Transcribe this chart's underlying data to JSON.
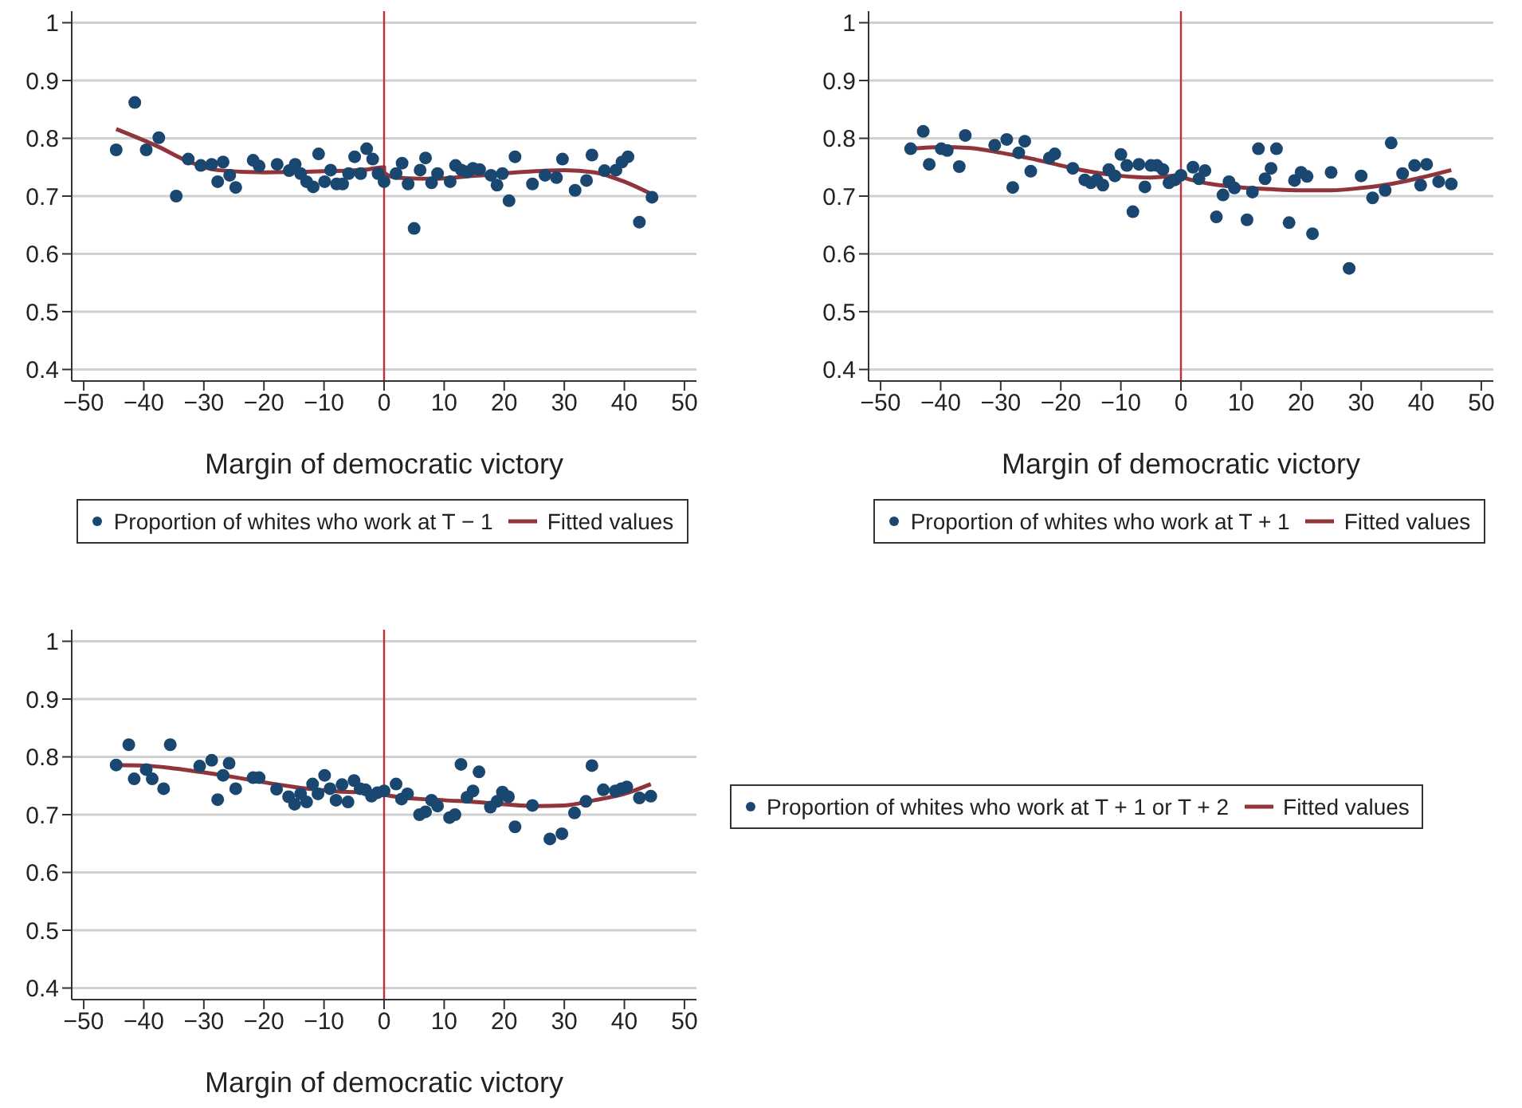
{
  "chart_data": [
    {
      "type": "scatter",
      "xlabel": "Margin of democratic victory",
      "xlim": [
        -52,
        52
      ],
      "ylim": [
        0.38,
        1.02
      ],
      "xticks": [
        -50,
        -40,
        -30,
        -20,
        -10,
        0,
        10,
        20,
        30,
        40,
        50
      ],
      "yticks": [
        0.4,
        0.5,
        0.6,
        0.7,
        0.8,
        0.9,
        1
      ],
      "grid": "y",
      "legend": "bottom",
      "ref_lines": [
        {
          "axis": "x",
          "value": 0,
          "color": "#c0303c"
        }
      ],
      "series": [
        {
          "name": "Proportion of whites who work at T − 1",
          "marker": "circle",
          "color": "#1a476f",
          "x": [
            -44.6,
            -41.5,
            -39.6,
            -37.5,
            -34.6,
            -32.6,
            -30.5,
            -28.7,
            -27.7,
            -26.8,
            -25.7,
            -24.7,
            -21.8,
            -20.8,
            -17.8,
            -15.8,
            -14.8,
            -13.9,
            -12.9,
            -11.8,
            -10.9,
            -9.9,
            -8.9,
            -7.9,
            -6.9,
            -5.9,
            -4.9,
            -3.9,
            -2.9,
            -1.9,
            -1.0,
            0,
            2.0,
            3.0,
            4.0,
            5.0,
            6.0,
            6.9,
            7.9,
            8.9,
            11.0,
            11.9,
            12.9,
            13.9,
            14.8,
            15.9,
            17.8,
            18.8,
            19.7,
            20.8,
            21.8,
            24.7,
            26.8,
            28.7,
            29.7,
            31.8,
            33.7,
            34.6,
            36.7,
            38.6,
            39.6,
            40.6,
            42.5,
            44.6
          ],
          "values": [
            0.78,
            0.862,
            0.78,
            0.801,
            0.7,
            0.764,
            0.753,
            0.755,
            0.725,
            0.759,
            0.736,
            0.715,
            0.762,
            0.752,
            0.755,
            0.744,
            0.755,
            0.739,
            0.725,
            0.716,
            0.773,
            0.725,
            0.745,
            0.721,
            0.721,
            0.739,
            0.768,
            0.739,
            0.782,
            0.764,
            0.739,
            0.725,
            0.739,
            0.757,
            0.721,
            0.644,
            0.745,
            0.766,
            0.723,
            0.739,
            0.725,
            0.753,
            0.745,
            0.742,
            0.748,
            0.746,
            0.736,
            0.719,
            0.739,
            0.692,
            0.768,
            0.721,
            0.736,
            0.732,
            0.764,
            0.71,
            0.727,
            0.771,
            0.744,
            0.745,
            0.759,
            0.768,
            0.655,
            0.698
          ]
        },
        {
          "name": "Fitted values",
          "type": "line",
          "marker": "none",
          "line_style": "solid",
          "color": "#90353b",
          "x": [
            -44.6,
            -37.5,
            -32.6,
            -27.7,
            -20,
            -10,
            -3,
            0,
            0,
            2,
            8,
            15,
            22,
            30,
            35,
            40,
            44.6
          ],
          "values": [
            0.816,
            0.785,
            0.76,
            0.745,
            0.741,
            0.743,
            0.746,
            0.75,
            0.741,
            0.732,
            0.73,
            0.735,
            0.741,
            0.745,
            0.741,
            0.725,
            0.703
          ]
        }
      ]
    },
    {
      "type": "scatter",
      "xlabel": "Margin of democratic victory",
      "xlim": [
        -52,
        52
      ],
      "ylim": [
        0.38,
        1.02
      ],
      "xticks": [
        -50,
        -40,
        -30,
        -20,
        -10,
        0,
        10,
        20,
        30,
        40,
        50
      ],
      "yticks": [
        0.4,
        0.5,
        0.6,
        0.7,
        0.8,
        0.9,
        1
      ],
      "grid": "y",
      "legend": "bottom",
      "ref_lines": [
        {
          "axis": "x",
          "value": 0,
          "color": "#c0303c"
        }
      ],
      "series": [
        {
          "name": "Proportion of whites who work at T + 1",
          "marker": "circle",
          "color": "#1a476f",
          "x": [
            -45.0,
            -42.9,
            -41.9,
            -39.9,
            -38.9,
            -36.9,
            -35.9,
            -31.0,
            -29.0,
            -28.0,
            -27.0,
            -26.0,
            -25.0,
            -21.9,
            -21.0,
            -18.0,
            -16.0,
            -15.0,
            -14.0,
            -13.0,
            -12.0,
            -11.0,
            -10.0,
            -9.0,
            -8.0,
            -7.0,
            -6.0,
            -5.0,
            -4.0,
            -3.0,
            -2.0,
            -1.0,
            0,
            2.0,
            3.0,
            4.0,
            5.9,
            7.0,
            8.0,
            8.9,
            11.0,
            11.9,
            12.9,
            14.0,
            15.0,
            15.9,
            18.0,
            18.9,
            20.0,
            21.0,
            21.9,
            25.0,
            28.0,
            30.0,
            31.9,
            34.0,
            35.0,
            36.9,
            38.9,
            39.9,
            40.9,
            42.9,
            45.0
          ],
          "values": [
            0.782,
            0.812,
            0.755,
            0.782,
            0.779,
            0.751,
            0.805,
            0.788,
            0.798,
            0.715,
            0.775,
            0.795,
            0.743,
            0.766,
            0.773,
            0.748,
            0.728,
            0.723,
            0.728,
            0.719,
            0.746,
            0.735,
            0.772,
            0.753,
            0.673,
            0.755,
            0.716,
            0.753,
            0.753,
            0.746,
            0.723,
            0.728,
            0.736,
            0.75,
            0.73,
            0.744,
            0.664,
            0.702,
            0.725,
            0.714,
            0.659,
            0.707,
            0.782,
            0.73,
            0.748,
            0.782,
            0.654,
            0.727,
            0.741,
            0.734,
            0.635,
            0.741,
            0.575,
            0.735,
            0.697,
            0.71,
            0.792,
            0.739,
            0.753,
            0.719,
            0.755,
            0.725,
            0.721
          ]
        },
        {
          "name": "Fitted values",
          "type": "line",
          "marker": "none",
          "line_style": "solid",
          "color": "#90353b",
          "x": [
            -45,
            -40,
            -35,
            -30,
            -25,
            -20,
            -15,
            -10,
            -5,
            0,
            0,
            3,
            8,
            15,
            20,
            25,
            30,
            35,
            40,
            45
          ],
          "values": [
            0.782,
            0.785,
            0.783,
            0.775,
            0.765,
            0.753,
            0.742,
            0.735,
            0.732,
            0.736,
            0.735,
            0.725,
            0.717,
            0.712,
            0.71,
            0.71,
            0.714,
            0.721,
            0.732,
            0.745
          ]
        }
      ]
    },
    {
      "type": "scatter",
      "xlabel": "Margin of democratic victory",
      "xlim": [
        -52,
        52
      ],
      "ylim": [
        0.38,
        1.02
      ],
      "xticks": [
        -50,
        -40,
        -30,
        -20,
        -10,
        0,
        10,
        20,
        30,
        40,
        50
      ],
      "yticks": [
        0.4,
        0.5,
        0.6,
        0.7,
        0.8,
        0.9,
        1
      ],
      "grid": "y",
      "legend": "right",
      "ref_lines": [
        {
          "axis": "x",
          "value": 0,
          "color": "#c0303c"
        }
      ],
      "series": [
        {
          "name": "Proportion of whites who work at T + 1 or T + 2",
          "marker": "circle",
          "color": "#1a476f",
          "x": [
            -44.6,
            -42.5,
            -41.6,
            -39.6,
            -38.6,
            -36.7,
            -35.6,
            -30.7,
            -28.7,
            -27.7,
            -26.8,
            -25.8,
            -24.7,
            -21.8,
            -20.8,
            -17.9,
            -15.9,
            -14.9,
            -13.9,
            -12.9,
            -11.9,
            -11.0,
            -9.9,
            -9.0,
            -8.0,
            -7.0,
            -6.0,
            -5.0,
            -4.0,
            -3.1,
            -2.1,
            -1.1,
            0,
            2.0,
            2.9,
            3.9,
            5.9,
            6.9,
            7.9,
            8.9,
            10.9,
            11.8,
            12.8,
            13.8,
            14.8,
            15.8,
            17.7,
            18.8,
            19.7,
            20.7,
            21.8,
            24.7,
            27.6,
            29.6,
            31.7,
            33.6,
            34.6,
            36.5,
            38.5,
            39.5,
            40.4,
            42.5,
            44.4
          ],
          "values": [
            0.786,
            0.821,
            0.762,
            0.778,
            0.762,
            0.745,
            0.821,
            0.784,
            0.794,
            0.726,
            0.768,
            0.789,
            0.745,
            0.764,
            0.764,
            0.744,
            0.731,
            0.718,
            0.736,
            0.722,
            0.753,
            0.736,
            0.768,
            0.745,
            0.725,
            0.752,
            0.722,
            0.759,
            0.745,
            0.743,
            0.732,
            0.738,
            0.741,
            0.753,
            0.727,
            0.736,
            0.7,
            0.705,
            0.725,
            0.715,
            0.695,
            0.7,
            0.787,
            0.73,
            0.741,
            0.774,
            0.713,
            0.723,
            0.739,
            0.731,
            0.679,
            0.716,
            0.658,
            0.667,
            0.703,
            0.723,
            0.785,
            0.743,
            0.741,
            0.745,
            0.748,
            0.729,
            0.732
          ]
        },
        {
          "name": "Fitted values",
          "type": "line",
          "marker": "none",
          "line_style": "solid",
          "color": "#90353b",
          "x": [
            -44.6,
            -40,
            -35,
            -30,
            -25,
            -20,
            -15,
            -10,
            -5,
            -1,
            0,
            0,
            3,
            10,
            15,
            20,
            25,
            30,
            35,
            40,
            44.4
          ],
          "values": [
            0.786,
            0.785,
            0.78,
            0.773,
            0.765,
            0.756,
            0.748,
            0.742,
            0.739,
            0.741,
            0.745,
            0.735,
            0.73,
            0.725,
            0.722,
            0.718,
            0.715,
            0.716,
            0.725,
            0.736,
            0.753
          ]
        }
      ]
    }
  ]
}
